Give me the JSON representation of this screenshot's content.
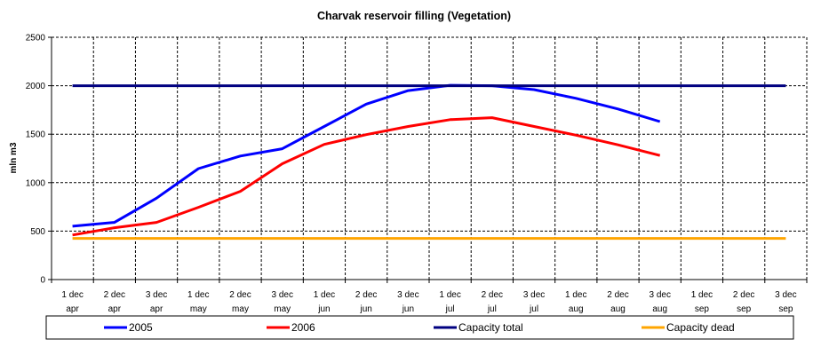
{
  "chart_data": {
    "type": "line",
    "title": "Charvak reservoir filling  (Vegetation)",
    "xlabel": "",
    "ylabel": "mln m3",
    "ylim": [
      0,
      2500
    ],
    "yticks": [
      "0",
      "500",
      "1000",
      "1500",
      "2000",
      "2500"
    ],
    "grid": true,
    "legend_position": "bottom",
    "categories": [
      [
        "1 dec",
        "apr"
      ],
      [
        "2 dec",
        "apr"
      ],
      [
        "3 dec",
        "apr"
      ],
      [
        "1 dec",
        "may"
      ],
      [
        "2 dec",
        "may"
      ],
      [
        "3 dec",
        "may"
      ],
      [
        "1 dec",
        "jun"
      ],
      [
        "2 dec",
        "jun"
      ],
      [
        "3 dec",
        "jun"
      ],
      [
        "1 dec",
        "jul"
      ],
      [
        "2 dec",
        "jul"
      ],
      [
        "3 dec",
        "jul"
      ],
      [
        "1 dec",
        "aug"
      ],
      [
        "2 dec",
        "aug"
      ],
      [
        "3 dec",
        "aug"
      ],
      [
        "1 dec",
        "sep"
      ],
      [
        "2 dec",
        "sep"
      ],
      [
        "3 dec",
        "sep"
      ]
    ],
    "series": [
      {
        "name": "2005",
        "color": "#0000ff",
        "values": [
          550,
          590,
          840,
          1145,
          1275,
          1350,
          1580,
          1810,
          1950,
          2005,
          2000,
          1960,
          1870,
          1760,
          1630,
          null,
          null,
          null
        ]
      },
      {
        "name": "2006",
        "color": "#ff0000",
        "values": [
          460,
          535,
          590,
          745,
          910,
          1195,
          1395,
          1495,
          1580,
          1650,
          1670,
          1580,
          1490,
          1390,
          1280,
          null,
          null,
          null
        ]
      },
      {
        "name": "Capacity total",
        "color": "#000080",
        "values": [
          2000,
          2000,
          2000,
          2000,
          2000,
          2000,
          2000,
          2000,
          2000,
          2000,
          2000,
          2000,
          2000,
          2000,
          2000,
          2000,
          2000,
          2000
        ]
      },
      {
        "name": "Capacity dead",
        "color": "#ffa500",
        "values": [
          425,
          425,
          425,
          425,
          425,
          425,
          425,
          425,
          425,
          425,
          425,
          425,
          425,
          425,
          425,
          425,
          425,
          425
        ]
      }
    ]
  }
}
